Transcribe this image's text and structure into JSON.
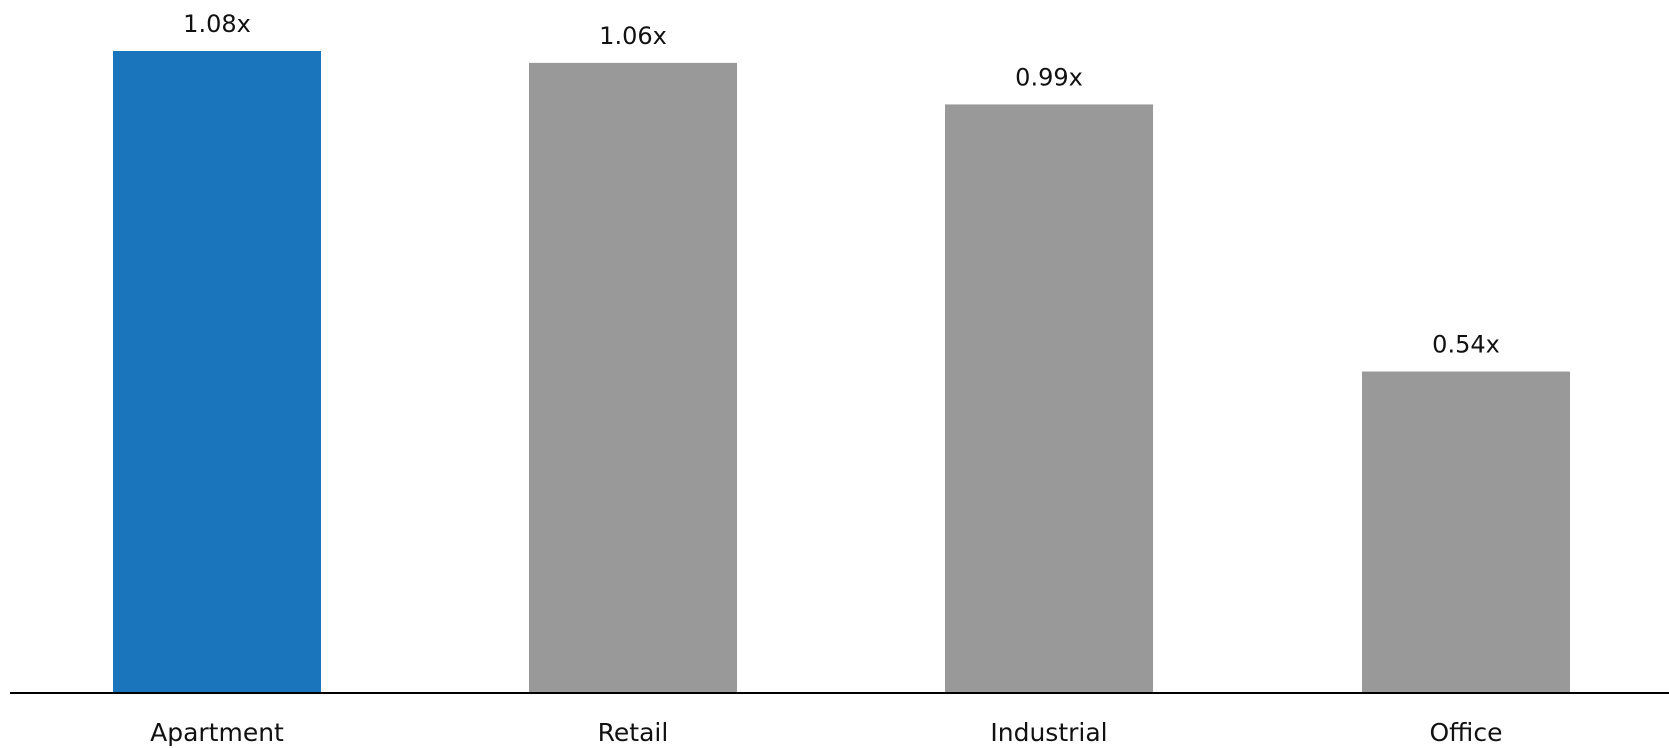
{
  "chart_data": {
    "type": "bar",
    "categories": [
      "Apartment",
      "Retail",
      "Industrial",
      "Office"
    ],
    "values": [
      1.08,
      1.06,
      0.99,
      0.54
    ],
    "value_labels": [
      "1.08x",
      "1.06x",
      "0.99x",
      "0.54x"
    ],
    "ylim": [
      0,
      1.08
    ],
    "grid": false,
    "highlight_index": 0,
    "colors": {
      "highlight": "#1b75bc",
      "default": "#999999",
      "axis": "#000000",
      "text": "#111111"
    }
  }
}
